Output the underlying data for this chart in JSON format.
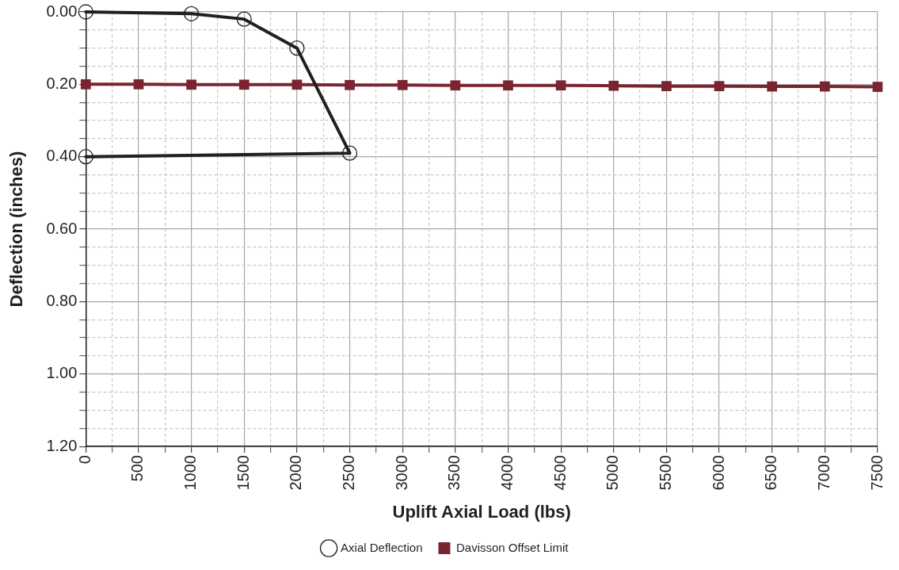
{
  "chart_data": {
    "type": "line",
    "xlabel": "Uplift Axial Load (lbs)",
    "ylabel": "Deflection (inches)",
    "xlim": [
      0,
      7500
    ],
    "xticks": [
      0,
      {
        "value": 250,
        "label": null
      },
      500,
      {
        "value": 750,
        "label": null
      },
      1000,
      {
        "value": 1250,
        "label": null
      },
      1500,
      {
        "value": 1750,
        "label": null
      },
      2000,
      {
        "value": 2250,
        "label": null
      },
      2500,
      {
        "value": 2750,
        "label": null
      },
      3000,
      {
        "value": 3250,
        "label": null
      },
      3500,
      {
        "value": 3750,
        "label": null
      },
      4000,
      {
        "value": 4250,
        "label": null
      },
      4500,
      {
        "value": 4750,
        "label": null
      },
      5000,
      {
        "value": 5250,
        "label": null
      },
      5500,
      {
        "value": 5750,
        "label": null
      },
      6000,
      {
        "value": 6250,
        "label": null
      },
      6500,
      {
        "value": 6750,
        "label": null
      },
      7000,
      {
        "value": 7250,
        "label": null
      },
      7500
    ],
    "ylim": [
      1.2,
      0
    ],
    "yticks": [
      {
        "value": 0,
        "label": "0.00"
      },
      {
        "value": 0.05,
        "label": null
      },
      {
        "value": 0.1,
        "label": null
      },
      {
        "value": 0.15,
        "label": null
      },
      {
        "value": 0.2,
        "label": "0.20"
      },
      {
        "value": 0.25,
        "label": null
      },
      {
        "value": 0.3,
        "label": null
      },
      {
        "value": 0.35,
        "label": null
      },
      {
        "value": 0.4,
        "label": "0.40"
      },
      {
        "value": 0.45,
        "label": null
      },
      {
        "value": 0.5,
        "label": null
      },
      {
        "value": 0.55,
        "label": null
      },
      {
        "value": 0.6,
        "label": "0.60"
      },
      {
        "value": 0.65,
        "label": null
      },
      {
        "value": 0.7,
        "label": null
      },
      {
        "value": 0.75,
        "label": null
      },
      {
        "value": 0.8,
        "label": "0.80"
      },
      {
        "value": 0.85,
        "label": null
      },
      {
        "value": 0.9,
        "label": null
      },
      {
        "value": 0.95,
        "label": null
      },
      {
        "value": 1.0,
        "label": "1.00"
      },
      {
        "value": 1.05,
        "label": null
      },
      {
        "value": 1.1,
        "label": null
      },
      {
        "value": 1.15,
        "label": null
      },
      {
        "value": 1.2,
        "label": "1.20"
      }
    ],
    "grid": true,
    "legend": "bottom",
    "line_style": "solid",
    "series": [
      {
        "name": "Axial Deflection",
        "color": "#231f20",
        "marker": "circle",
        "x": [
          0,
          1000,
          1500,
          2000,
          2500,
          0
        ],
        "values": [
          0,
          0.005,
          0.02,
          0.1,
          0.39,
          0.4
        ]
      },
      {
        "name": "Davisson Offset Limit",
        "color": "#7b2431",
        "marker": "square",
        "x": [
          0,
          500,
          1000,
          1500,
          2000,
          2500,
          3000,
          3500,
          4000,
          4500,
          5000,
          5500,
          6000,
          6500,
          7000,
          7500
        ],
        "values": [
          0.2,
          0.2,
          0.201,
          0.201,
          0.201,
          0.202,
          0.202,
          0.203,
          0.203,
          0.203,
          0.204,
          0.205,
          0.205,
          0.206,
          0.206,
          0.207
        ]
      }
    ]
  }
}
